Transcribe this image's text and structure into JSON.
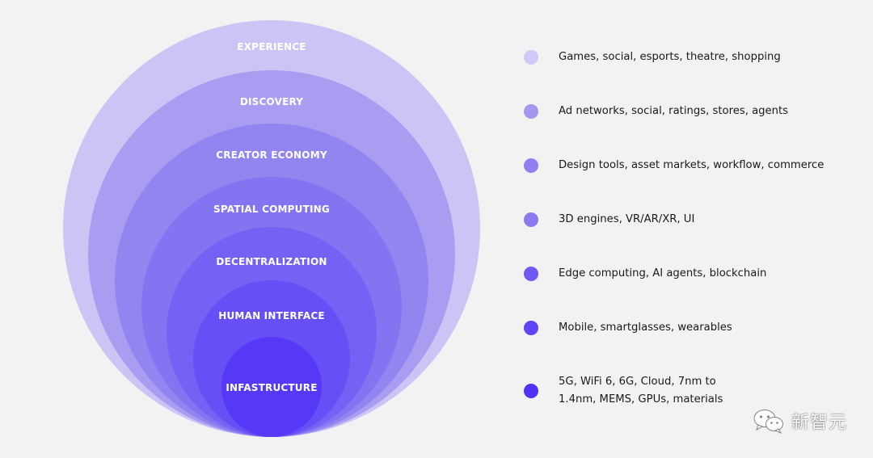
{
  "layers": [
    {
      "label": "EXPERIENCE",
      "description": "Games, social, esports, theatre, shopping",
      "color": "#cbc4f5"
    },
    {
      "label": "DISCOVERY",
      "description": "Ad networks, social, ratings, stores, agents",
      "color": "#a89df0"
    },
    {
      "label": "CREATOR ECONOMY",
      "description": "Design tools, asset markets, workflow, commerce",
      "color": "#9385f0"
    },
    {
      "label": "SPATIAL COMPUTING",
      "description": "3D engines, VR/AR/XR, UI",
      "color": "#8574f2"
    },
    {
      "label": "DECENTRALIZATION",
      "description": "Edge computing, AI agents, blockchain",
      "color": "#7561f3"
    },
    {
      "label": "HUMAN INTERFACE",
      "description": "Mobile, smartglasses, wearables",
      "color": "#6650f5"
    },
    {
      "label": "INFASTRUCTURE",
      "description_lines": [
        "5G, WiFi 6, 6G, Cloud, 7nm to",
        "1.4nm, MEMS, GPUs, materials"
      ],
      "color": "#5639f7"
    }
  ],
  "legend_dot_colors": [
    "#cfc9f6",
    "#a397f0",
    "#8f80ef",
    "#8a7bf0",
    "#6f5af4",
    "#5d45f6",
    "#4f32f5"
  ],
  "watermark": {
    "text": "新智元",
    "icon": "wechat-icon"
  }
}
